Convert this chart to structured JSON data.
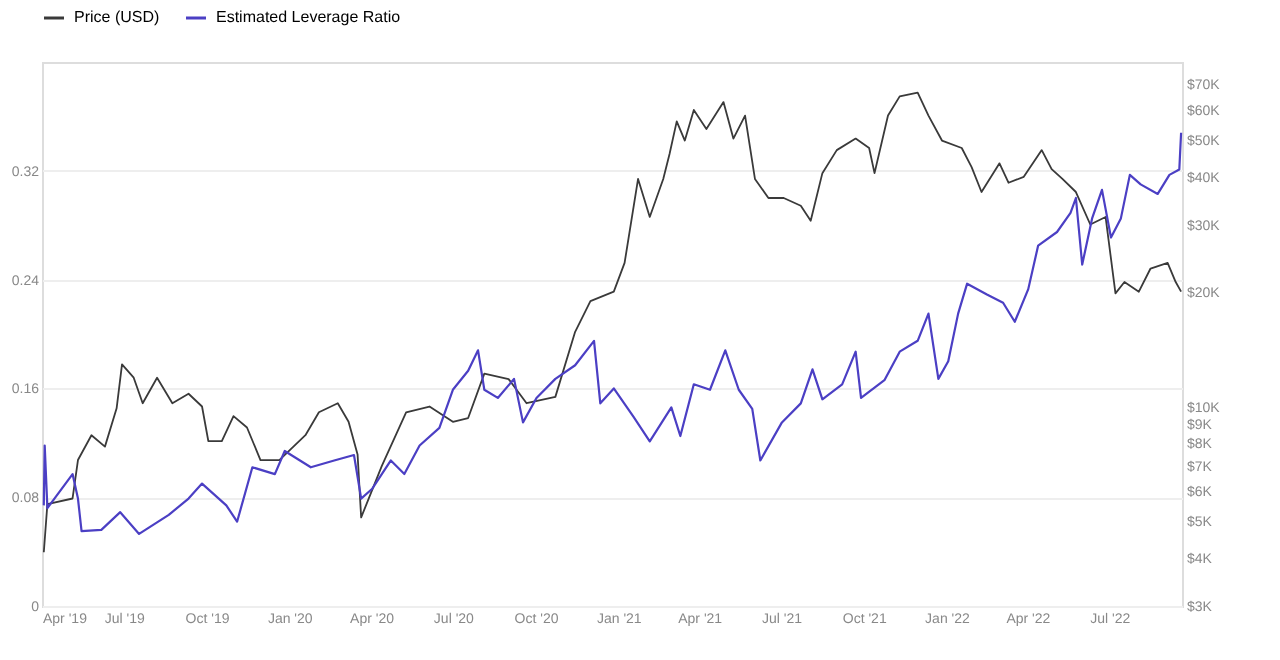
{
  "chart_data": {
    "type": "line",
    "legend": "top",
    "grid": "y",
    "marker": "none",
    "line_style": "solid",
    "log": "y2",
    "xlim": [
      "2019-04-01",
      "2022-09-20"
    ],
    "xticks": [
      {
        "value": "2019-04-01",
        "label": "Apr '19"
      },
      {
        "value": "2019-07-01",
        "label": "Jul '19"
      },
      {
        "value": "2019-10-01",
        "label": "Oct '19"
      },
      {
        "value": "2020-01-01",
        "label": "Jan '20"
      },
      {
        "value": "2020-04-01",
        "label": "Apr '20"
      },
      {
        "value": "2020-07-01",
        "label": "Jul '20"
      },
      {
        "value": "2020-10-01",
        "label": "Oct '20"
      },
      {
        "value": "2021-01-01",
        "label": "Jan '21"
      },
      {
        "value": "2021-04-01",
        "label": "Apr '21"
      },
      {
        "value": "2021-07-01",
        "label": "Jul '21"
      },
      {
        "value": "2021-10-01",
        "label": "Oct '21"
      },
      {
        "value": "2022-01-01",
        "label": "Jan '22"
      },
      {
        "value": "2022-04-01",
        "label": "Apr '22"
      },
      {
        "value": "2022-07-01",
        "label": "Jul '22"
      }
    ],
    "ylim": [
      0,
      0.4
    ],
    "yticks": [
      0,
      0.08,
      0.16,
      0.24,
      0.32
    ],
    "y2lim": [
      3000,
      80000
    ],
    "y2ticks": [
      {
        "value": 3000,
        "label": "$3K"
      },
      {
        "value": 4000,
        "label": "$4K"
      },
      {
        "value": 5000,
        "label": "$5K"
      },
      {
        "value": 6000,
        "label": "$6K"
      },
      {
        "value": 7000,
        "label": "$7K"
      },
      {
        "value": 8000,
        "label": "$8K"
      },
      {
        "value": 9000,
        "label": "$9K"
      },
      {
        "value": 10000,
        "label": "$10K"
      },
      {
        "value": 20000,
        "label": "$20K"
      },
      {
        "value": 30000,
        "label": "$30K"
      },
      {
        "value": 40000,
        "label": "$40K"
      },
      {
        "value": 50000,
        "label": "$50K"
      },
      {
        "value": 60000,
        "label": "$60K"
      },
      {
        "value": 70000,
        "label": "$70K"
      }
    ],
    "series": [
      {
        "name": "Price (USD)",
        "color": "#3a3a3a",
        "axis": "y2",
        "x": [
          "2019-04-03",
          "2019-04-07",
          "2019-05-05",
          "2019-05-11",
          "2019-05-26",
          "2019-06-10",
          "2019-06-23",
          "2019-06-29",
          "2019-07-12",
          "2019-07-22",
          "2019-08-07",
          "2019-08-24",
          "2019-09-11",
          "2019-09-26",
          "2019-10-03",
          "2019-10-18",
          "2019-10-31",
          "2019-11-15",
          "2019-11-30",
          "2019-12-21",
          "2020-01-19",
          "2020-02-03",
          "2020-02-24",
          "2020-03-07",
          "2020-03-17",
          "2020-03-21",
          "2020-04-13",
          "2020-05-10",
          "2020-06-05",
          "2020-07-01",
          "2020-07-18",
          "2020-08-05",
          "2020-09-01",
          "2020-09-21",
          "2020-10-23",
          "2020-11-14",
          "2020-12-01",
          "2020-12-27",
          "2021-01-08",
          "2021-01-23",
          "2021-02-05",
          "2021-02-20",
          "2021-02-27",
          "2021-03-07",
          "2021-03-16",
          "2021-03-26",
          "2021-04-09",
          "2021-04-28",
          "2021-05-09",
          "2021-05-22",
          "2021-06-02",
          "2021-06-17",
          "2021-07-04",
          "2021-07-23",
          "2021-08-03",
          "2021-08-16",
          "2021-09-01",
          "2021-09-22",
          "2021-10-07",
          "2021-10-13",
          "2021-10-28",
          "2021-11-10",
          "2021-11-30",
          "2021-12-12",
          "2021-12-27",
          "2022-01-18",
          "2022-01-29",
          "2022-02-09",
          "2022-03-01",
          "2022-03-11",
          "2022-03-28",
          "2022-04-17",
          "2022-04-28",
          "2022-05-10",
          "2022-05-25",
          "2022-06-10",
          "2022-06-27",
          "2022-07-08",
          "2022-07-18",
          "2022-08-03",
          "2022-08-16",
          "2022-09-04",
          "2022-09-13",
          "2022-09-19"
        ],
        "values": [
          4150,
          5550,
          5740,
          7240,
          8410,
          7850,
          9890,
          12900,
          11900,
          10200,
          11900,
          10200,
          10800,
          10000,
          8120,
          8120,
          9440,
          8810,
          7240,
          7240,
          8410,
          9660,
          10200,
          9120,
          7490,
          5120,
          6990,
          9660,
          10000,
          9120,
          9330,
          12200,
          11800,
          10200,
          10600,
          15700,
          18900,
          20000,
          23800,
          39500,
          31400,
          39500,
          45900,
          55900,
          49800,
          59900,
          53400,
          62800,
          50400,
          57900,
          39500,
          35200,
          35200,
          33600,
          30700,
          40900,
          47000,
          50400,
          47600,
          40900,
          57900,
          65000,
          66500,
          57900,
          49800,
          47600,
          42400,
          36500,
          43400,
          38600,
          40000,
          47000,
          41900,
          39500,
          36500,
          30000,
          31400,
          19800,
          21200,
          20000,
          23000,
          23800,
          21200,
          20000
        ]
      },
      {
        "name": "Estimated Leverage Ratio",
        "color": "#4b3fc4",
        "x": [
          "2019-04-03",
          "2019-04-04",
          "2019-04-07",
          "2019-05-05",
          "2019-05-11",
          "2019-05-15",
          "2019-06-06",
          "2019-06-27",
          "2019-07-18",
          "2019-08-20",
          "2019-09-11",
          "2019-09-26",
          "2019-10-23",
          "2019-11-04",
          "2019-11-21",
          "2019-12-16",
          "2019-12-27",
          "2020-01-25",
          "2020-02-20",
          "2020-03-13",
          "2020-03-21",
          "2020-04-02",
          "2020-04-23",
          "2020-05-08",
          "2020-05-25",
          "2020-06-16",
          "2020-07-01",
          "2020-07-18",
          "2020-07-29",
          "2020-08-05",
          "2020-08-20",
          "2020-09-07",
          "2020-09-17",
          "2020-10-02",
          "2020-10-23",
          "2020-11-14",
          "2020-12-05",
          "2020-12-12",
          "2020-12-27",
          "2021-01-18",
          "2021-02-05",
          "2021-03-01",
          "2021-03-11",
          "2021-03-26",
          "2021-04-13",
          "2021-04-30",
          "2021-05-15",
          "2021-05-30",
          "2021-06-08",
          "2021-07-02",
          "2021-07-23",
          "2021-08-05",
          "2021-08-16",
          "2021-09-07",
          "2021-09-22",
          "2021-09-28",
          "2021-10-24",
          "2021-11-10",
          "2021-11-30",
          "2021-12-12",
          "2021-12-23",
          "2022-01-03",
          "2022-01-14",
          "2022-01-24",
          "2022-02-15",
          "2022-03-05",
          "2022-03-18",
          "2022-04-02",
          "2022-04-13",
          "2022-05-04",
          "2022-05-19",
          "2022-05-25",
          "2022-06-01",
          "2022-06-12",
          "2022-06-23",
          "2022-07-03",
          "2022-07-14",
          "2022-07-24",
          "2022-08-05",
          "2022-08-24",
          "2022-09-06",
          "2022-09-17",
          "2022-09-19"
        ],
        "values": [
          0.074,
          0.118,
          0.072,
          0.097,
          0.079,
          0.055,
          0.056,
          0.069,
          0.053,
          0.067,
          0.079,
          0.09,
          0.074,
          0.062,
          0.102,
          0.097,
          0.114,
          0.102,
          0.107,
          0.111,
          0.079,
          0.086,
          0.107,
          0.097,
          0.118,
          0.131,
          0.159,
          0.173,
          0.188,
          0.159,
          0.153,
          0.167,
          0.135,
          0.153,
          0.167,
          0.177,
          0.195,
          0.149,
          0.16,
          0.139,
          0.121,
          0.146,
          0.125,
          0.163,
          0.159,
          0.188,
          0.159,
          0.145,
          0.107,
          0.135,
          0.149,
          0.174,
          0.152,
          0.163,
          0.187,
          0.153,
          0.166,
          0.187,
          0.195,
          0.215,
          0.167,
          0.18,
          0.215,
          0.237,
          0.229,
          0.223,
          0.209,
          0.233,
          0.265,
          0.275,
          0.289,
          0.3,
          0.251,
          0.285,
          0.306,
          0.271,
          0.285,
          0.317,
          0.31,
          0.303,
          0.317,
          0.321,
          0.348
        ]
      }
    ]
  }
}
